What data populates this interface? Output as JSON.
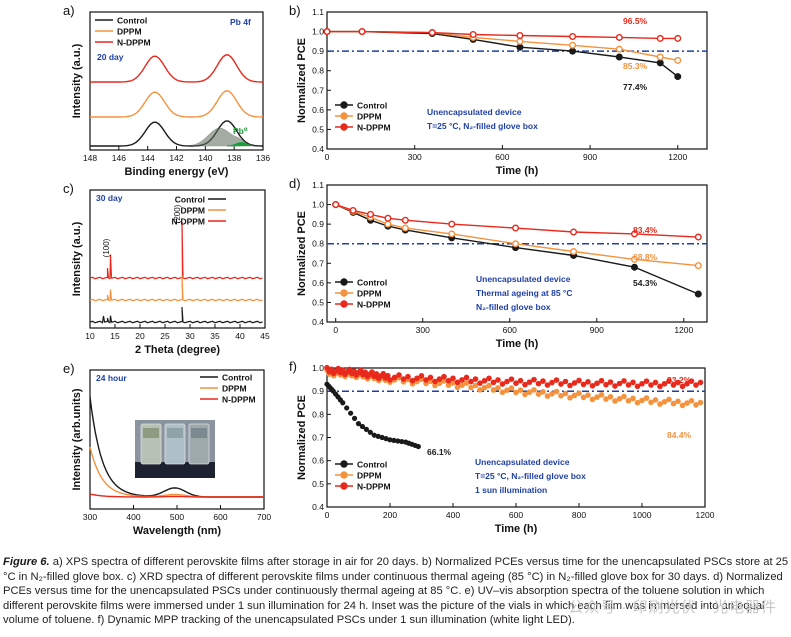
{
  "panels": {
    "a": {
      "letter": "a)",
      "title": "Pb 4f",
      "note": "20 day",
      "xlabel": "Binding energy (eV)",
      "ylabel": "Intensity (a.u.)",
      "xticks": [
        "148",
        "146",
        "144",
        "142",
        "140",
        "138",
        "136"
      ],
      "legend": [
        "Control",
        "DPPM",
        "N-DPPM"
      ],
      "annotation": "Pb⁰"
    },
    "b": {
      "letter": "b)",
      "xlabel": "Time (h)",
      "ylabel": "Normalized PCE",
      "xticks": [
        "0",
        "300",
        "600",
        "900",
        "1200"
      ],
      "yticks": [
        "0.4",
        "0.5",
        "0.6",
        "0.7",
        "0.8",
        "0.9",
        "1.0",
        "1.1"
      ],
      "legend": [
        "Control",
        "DPPM",
        "N-DPPM"
      ],
      "cond1": "Unencapsulated device",
      "cond2": "T=25 °C, N₂-filled glove box",
      "labels": [
        "96.5%",
        "85.3%",
        "77.4%"
      ]
    },
    "c": {
      "letter": "c)",
      "note": "30 day",
      "xlabel": "2 Theta (degree)",
      "ylabel": "Intensity (a.u.)",
      "xticks": [
        "10",
        "15",
        "20",
        "25",
        "30",
        "35",
        "40",
        "45"
      ],
      "legend": [
        "Control",
        "DPPM",
        "N-DPPM"
      ],
      "peak1": "(100)",
      "peak2": "(200)"
    },
    "d": {
      "letter": "d)",
      "xlabel": "Time (h)",
      "ylabel": "Normalized PCE",
      "xticks": [
        "0",
        "300",
        "600",
        "900",
        "1200"
      ],
      "yticks": [
        "0.4",
        "0.5",
        "0.6",
        "0.7",
        "0.8",
        "0.9",
        "1.0",
        "1.1"
      ],
      "legend": [
        "Control",
        "DPPM",
        "N-DPPM"
      ],
      "cond1": "Unencapsulated device",
      "cond2": "Thermal ageing at 85 °C",
      "cond3": "N₂-filled glove box",
      "labels": [
        "83.4%",
        "68.8%",
        "54.3%"
      ]
    },
    "e": {
      "letter": "e)",
      "note": "24 hour",
      "xlabel": "Wavelength (nm)",
      "ylabel": "Intensity (arb.units)",
      "xticks": [
        "300",
        "400",
        "500",
        "600",
        "700"
      ],
      "legend": [
        "Control",
        "DPPM",
        "N-DPPM"
      ]
    },
    "f": {
      "letter": "f)",
      "xlabel": "Time (h)",
      "ylabel": "Normalized PCE",
      "xticks": [
        "0",
        "200",
        "400",
        "600",
        "800",
        "1000",
        "1200"
      ],
      "yticks": [
        "0.4",
        "0.5",
        "0.6",
        "0.7",
        "0.8",
        "0.9",
        "1.0"
      ],
      "legend": [
        "Control",
        "DPPM",
        "N-DPPM"
      ],
      "cond1": "Unencapsulated device",
      "cond2": "T=25 °C, N₂-filled glove box",
      "cond3": "1 sun illumination",
      "labels": [
        "93.2%",
        "84.4%",
        "66.1%"
      ]
    }
  },
  "caption": {
    "lead": "Figure 6.",
    "text": " a) XPS spectra of different perovskite films after storage in air for 20 days. b) Normalized PCEs versus time for the unencapsulated PSCs store at 25 °C in N₂-filled glove box. c) XRD spectra of different perovskite films under continuous thermal ageing (85 °C) in N₂-filled glove box for 30 days. d) Normalized PCEs versus time for the unencapsulated PSCs under continuously thermal ageing at 85 °C. e) UV–vis absorption spectra of the toluene solution in which different perovskite films were immersed under 1 sun illumination for 24 h. Inset was the picture of the vials in which each film was immersed into an equal volume of toluene. f) Dynamic MPP tracking of the unencapsulated PSCs under 1 sun illumination (white light LED)."
  },
  "watermark": "公众号 · 印刷光伏 · 光电器件",
  "colors": {
    "control": "#1a1a1a",
    "dppm": "#f5923e",
    "ndppm": "#e8291c",
    "ref": "#1f3faa",
    "blue_text": "#1f3faa",
    "green": "#1e9e3a"
  },
  "chart_data": [
    {
      "panel": "b",
      "type": "line",
      "title": "",
      "xlabel": "Time (h)",
      "ylabel": "Normalized PCE",
      "xlim": [
        0,
        1300
      ],
      "ylim": [
        0.4,
        1.1
      ],
      "reference_line": 0.9,
      "series": [
        {
          "name": "Control",
          "x": [
            0,
            120,
            360,
            500,
            660,
            840,
            1000,
            1140,
            1200
          ],
          "y": [
            1.0,
            1.0,
            0.99,
            0.96,
            0.92,
            0.9,
            0.87,
            0.84,
            0.77
          ]
        },
        {
          "name": "DPPM",
          "x": [
            0,
            120,
            360,
            500,
            660,
            840,
            1000,
            1140,
            1200
          ],
          "y": [
            1.0,
            1.0,
            0.995,
            0.97,
            0.95,
            0.93,
            0.91,
            0.87,
            0.853
          ]
        },
        {
          "name": "N-DPPM",
          "x": [
            0,
            120,
            360,
            500,
            660,
            840,
            1000,
            1140,
            1200
          ],
          "y": [
            1.0,
            1.0,
            0.995,
            0.985,
            0.98,
            0.975,
            0.97,
            0.965,
            0.965
          ]
        }
      ]
    },
    {
      "panel": "d",
      "type": "line",
      "title": "",
      "xlabel": "Time (h)",
      "ylabel": "Normalized PCE",
      "xlim": [
        -30,
        1280
      ],
      "ylim": [
        0.4,
        1.1
      ],
      "reference_line": 0.8,
      "series": [
        {
          "name": "Control",
          "x": [
            0,
            60,
            120,
            180,
            240,
            400,
            620,
            820,
            1030,
            1250
          ],
          "y": [
            1.0,
            0.96,
            0.92,
            0.89,
            0.87,
            0.83,
            0.78,
            0.74,
            0.68,
            0.543
          ]
        },
        {
          "name": "DPPM",
          "x": [
            0,
            60,
            120,
            180,
            240,
            400,
            620,
            820,
            1030,
            1250
          ],
          "y": [
            1.0,
            0.965,
            0.935,
            0.9,
            0.88,
            0.85,
            0.8,
            0.76,
            0.72,
            0.688
          ]
        },
        {
          "name": "N-DPPM",
          "x": [
            0,
            60,
            120,
            180,
            240,
            400,
            620,
            820,
            1030,
            1250
          ],
          "y": [
            1.0,
            0.97,
            0.95,
            0.93,
            0.92,
            0.9,
            0.88,
            0.86,
            0.85,
            0.834
          ]
        }
      ]
    },
    {
      "panel": "f",
      "type": "scatter",
      "title": "",
      "xlabel": "Time (h)",
      "ylabel": "Normalized PCE",
      "xlim": [
        0,
        1200
      ],
      "ylim": [
        0.4,
        1.0
      ],
      "reference_line": 0.9,
      "series": [
        {
          "name": "Control",
          "x": [
            0,
            20,
            50,
            100,
            150,
            200,
            250,
            290
          ],
          "y": [
            0.93,
            0.9,
            0.85,
            0.76,
            0.71,
            0.69,
            0.68,
            0.661
          ]
        },
        {
          "name": "DPPM",
          "x": [
            0,
            100,
            200,
            400,
            600,
            800,
            1000,
            1200
          ],
          "y": [
            0.98,
            0.97,
            0.95,
            0.93,
            0.9,
            0.88,
            0.86,
            0.844
          ]
        },
        {
          "name": "N-DPPM",
          "x": [
            0,
            100,
            200,
            400,
            600,
            800,
            1000,
            1200
          ],
          "y": [
            0.99,
            0.98,
            0.96,
            0.95,
            0.94,
            0.935,
            0.932,
            0.932
          ]
        }
      ]
    },
    {
      "panel": "a",
      "type": "line",
      "title": "Pb 4f",
      "xlabel": "Binding energy (eV)",
      "ylabel": "Intensity (a.u.)",
      "xlim": [
        148,
        136
      ],
      "series": [
        {
          "name": "N-DPPM",
          "peaks_eV": [
            143.5,
            138.5
          ]
        },
        {
          "name": "DPPM",
          "peaks_eV": [
            143.5,
            138.5
          ]
        },
        {
          "name": "Control",
          "peaks_eV": [
            143.5,
            138.5
          ],
          "extra_component": "Pb⁰"
        }
      ]
    },
    {
      "panel": "c",
      "type": "line",
      "title": "",
      "xlabel": "2 Theta (degree)",
      "ylabel": "Intensity (a.u.)",
      "xlim": [
        10,
        45
      ],
      "series": [
        {
          "name": "N-DPPM",
          "peaks_deg": [
            13.3,
            14.1,
            28.4
          ]
        },
        {
          "name": "DPPM",
          "peaks_deg": [
            13.3,
            14.1,
            28.4
          ]
        },
        {
          "name": "Control",
          "peaks_deg": [
            12.7,
            14.1,
            28.4
          ]
        }
      ]
    },
    {
      "panel": "e",
      "type": "line",
      "title": "",
      "xlabel": "Wavelength (nm)",
      "ylabel": "Intensity (arb.units)",
      "xlim": [
        300,
        700
      ],
      "series": [
        {
          "name": "Control",
          "x": [
            300,
            330,
            360,
            400,
            450,
            500,
            550,
            600,
            700
          ],
          "y": [
            1.0,
            0.7,
            0.35,
            0.12,
            0.08,
            0.14,
            0.06,
            0.02,
            0.0
          ]
        },
        {
          "name": "DPPM",
          "x": [
            300,
            330,
            360,
            400,
            450,
            500,
            550,
            600,
            700
          ],
          "y": [
            0.45,
            0.25,
            0.1,
            0.03,
            0.02,
            0.04,
            0.02,
            0.01,
            0.0
          ]
        },
        {
          "name": "N-DPPM",
          "x": [
            300,
            330,
            360,
            400,
            450,
            500,
            550,
            600,
            700
          ],
          "y": [
            0.05,
            0.03,
            0.02,
            0.01,
            0.01,
            0.01,
            0.0,
            0.0,
            0.0
          ]
        }
      ]
    }
  ]
}
